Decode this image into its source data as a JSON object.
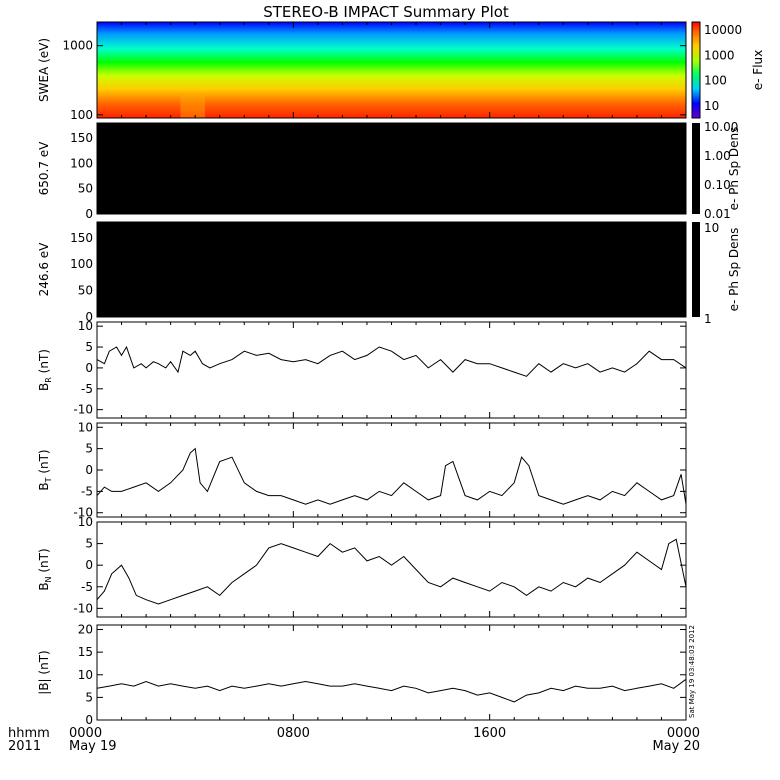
{
  "title": "STEREO-B IMPACT Summary Plot",
  "timestamp": "Sat May 19 03:48:03 2012",
  "time_axis": {
    "corner_labels": [
      "hhmm",
      "2011"
    ],
    "ticks": [
      {
        "label": "0000",
        "sub": "May 19",
        "hour": 0
      },
      {
        "label": "0800",
        "sub": "",
        "hour": 8
      },
      {
        "label": "1600",
        "sub": "",
        "hour": 16
      },
      {
        "label": "0000",
        "sub": "May 20",
        "hour": 24
      }
    ],
    "range_hours": [
      0,
      24
    ]
  },
  "colors": {
    "spectrogram": [
      "#0000ff",
      "#0099ff",
      "#00ffcc",
      "#00ff00",
      "#ccff00",
      "#ffcc00",
      "#ff6600",
      "#ff2200"
    ],
    "dark_panel": "#000000",
    "line": "#000000"
  },
  "chart_data": [
    {
      "type": "heatmap",
      "ylabel": "SWEA (eV)",
      "yscale": "log",
      "ylim": [
        90,
        2200
      ],
      "yticks": [
        "100",
        "1000"
      ],
      "colorbar": {
        "label": "e- Flux",
        "ticks": [
          "10000",
          "1000",
          "100",
          "10"
        ]
      }
    },
    {
      "type": "heatmap",
      "ylabel": "650.7 eV",
      "ylim": [
        0,
        180
      ],
      "yticks": [
        "0",
        "50",
        "100",
        "150"
      ],
      "colorbar": {
        "label": "e- Ph Sp Dens",
        "ticks": [
          "10.00",
          "1.00",
          "0.10",
          "0.01"
        ]
      }
    },
    {
      "type": "heatmap",
      "ylabel": "246.6 eV",
      "ylim": [
        0,
        180
      ],
      "yticks": [
        "0",
        "50",
        "100",
        "150"
      ],
      "colorbar": {
        "label": "e- Ph Sp Dens",
        "ticks": [
          "10",
          "1"
        ]
      }
    },
    {
      "type": "line",
      "ylabel": "B",
      "ylabel_sub": "R",
      "ylabel_unit": "(nT)",
      "ylim": [
        -12,
        11
      ],
      "yticks": [
        "-10",
        "-5",
        "0",
        "5",
        "10"
      ],
      "x": [
        0,
        0.3,
        0.5,
        0.8,
        1.0,
        1.2,
        1.5,
        1.8,
        2.0,
        2.3,
        2.5,
        2.8,
        3.0,
        3.3,
        3.5,
        3.8,
        4.0,
        4.3,
        4.6,
        5.0,
        5.5,
        6.0,
        6.5,
        7.0,
        7.5,
        8.0,
        8.5,
        9.0,
        9.5,
        10.0,
        10.5,
        11.0,
        11.5,
        12.0,
        12.5,
        13.0,
        13.5,
        14.0,
        14.5,
        15.0,
        15.5,
        16.0,
        16.5,
        17.0,
        17.5,
        18.0,
        18.5,
        19.0,
        19.5,
        20.0,
        20.5,
        21.0,
        21.5,
        22.0,
        22.5,
        23.0,
        23.5,
        24.0
      ],
      "values": [
        2,
        1,
        4,
        5,
        3,
        5,
        0,
        1,
        0,
        1.5,
        1,
        0,
        1.5,
        -1,
        4,
        3,
        4,
        1,
        0,
        1,
        2,
        4,
        3,
        3.5,
        2,
        1.5,
        2,
        1,
        3,
        4,
        2,
        3,
        5,
        4,
        2,
        3,
        0,
        2,
        -1,
        2,
        1,
        1,
        0,
        -1,
        -2,
        1,
        -1,
        1,
        0,
        1,
        -1,
        0,
        -1,
        1,
        4,
        2,
        2,
        0
      ]
    },
    {
      "type": "line",
      "ylabel": "B",
      "ylabel_sub": "T",
      "ylabel_unit": "(nT)",
      "ylim": [
        -11,
        11
      ],
      "yticks": [
        "-10",
        "-5",
        "0",
        "5",
        "10"
      ],
      "x": [
        0,
        0.3,
        0.6,
        1.0,
        1.5,
        2.0,
        2.5,
        3.0,
        3.5,
        3.8,
        4.0,
        4.2,
        4.5,
        5.0,
        5.5,
        6.0,
        6.5,
        7.0,
        7.5,
        8.0,
        8.5,
        9.0,
        9.5,
        10.0,
        10.5,
        11.0,
        11.5,
        12.0,
        12.5,
        13.0,
        13.5,
        14.0,
        14.2,
        14.5,
        15.0,
        15.5,
        16.0,
        16.5,
        17.0,
        17.3,
        17.6,
        18.0,
        18.5,
        19.0,
        19.5,
        20.0,
        20.5,
        21.0,
        21.5,
        22.0,
        22.5,
        23.0,
        23.5,
        23.8,
        24.0
      ],
      "values": [
        -6,
        -4,
        -5,
        -5,
        -4,
        -3,
        -5,
        -3,
        0,
        4,
        5,
        -3,
        -5,
        2,
        3,
        -3,
        -5,
        -6,
        -6,
        -7,
        -8,
        -7,
        -8,
        -7,
        -6,
        -7,
        -5,
        -6,
        -3,
        -5,
        -7,
        -6,
        1,
        2,
        -6,
        -7,
        -5,
        -6,
        -3,
        3,
        1,
        -6,
        -7,
        -8,
        -7,
        -6,
        -7,
        -5,
        -6,
        -3,
        -5,
        -7,
        -6,
        -1,
        -8
      ]
    },
    {
      "type": "line",
      "ylabel": "B",
      "ylabel_sub": "N",
      "ylabel_unit": "(nT)",
      "ylim": [
        -12,
        10
      ],
      "yticks": [
        "-10",
        "-5",
        "0",
        "5",
        "10"
      ],
      "x": [
        0,
        0.3,
        0.6,
        1.0,
        1.3,
        1.6,
        2.0,
        2.5,
        3.0,
        3.5,
        4.0,
        4.5,
        5.0,
        5.5,
        6.0,
        6.5,
        7.0,
        7.5,
        8.0,
        8.5,
        9.0,
        9.5,
        10.0,
        10.5,
        11.0,
        11.5,
        12.0,
        12.5,
        13.0,
        13.5,
        14.0,
        14.5,
        15.0,
        15.5,
        16.0,
        16.5,
        17.0,
        17.5,
        18.0,
        18.5,
        19.0,
        19.5,
        20.0,
        20.5,
        21.0,
        21.5,
        22.0,
        22.5,
        23.0,
        23.3,
        23.6,
        24.0
      ],
      "values": [
        -8,
        -6,
        -2,
        0,
        -3,
        -7,
        -8,
        -9,
        -8,
        -7,
        -6,
        -5,
        -7,
        -4,
        -2,
        0,
        4,
        5,
        4,
        3,
        2,
        5,
        3,
        4,
        1,
        2,
        0,
        2,
        -1,
        -4,
        -5,
        -3,
        -4,
        -5,
        -6,
        -4,
        -5,
        -7,
        -5,
        -6,
        -4,
        -5,
        -3,
        -4,
        -2,
        0,
        3,
        1,
        -1,
        5,
        6,
        -5
      ]
    },
    {
      "type": "line",
      "ylabel": "|B| (nT)",
      "ylim": [
        0,
        21
      ],
      "yticks": [
        "0",
        "5",
        "10",
        "15",
        "20"
      ],
      "x": [
        0,
        0.5,
        1.0,
        1.5,
        2.0,
        2.5,
        3.0,
        3.5,
        4.0,
        4.5,
        5.0,
        5.5,
        6.0,
        6.5,
        7.0,
        7.5,
        8.0,
        8.5,
        9.0,
        9.5,
        10.0,
        10.5,
        11.0,
        11.5,
        12.0,
        12.5,
        13.0,
        13.5,
        14.0,
        14.5,
        15.0,
        15.5,
        16.0,
        16.5,
        17.0,
        17.5,
        18.0,
        18.5,
        19.0,
        19.5,
        20.0,
        20.5,
        21.0,
        21.5,
        22.0,
        22.5,
        23.0,
        23.5,
        24.0
      ],
      "values": [
        7,
        7.5,
        8,
        7.5,
        8.5,
        7.5,
        8,
        7.5,
        7,
        7.5,
        6.5,
        7.5,
        7,
        7.5,
        8,
        7.5,
        8,
        8.5,
        8,
        7.5,
        7.5,
        8,
        7.5,
        7,
        6.5,
        7.5,
        7,
        6,
        6.5,
        7,
        6.5,
        5.5,
        6,
        5,
        4,
        5.5,
        6,
        7,
        6.5,
        7.5,
        7,
        7,
        7.5,
        6.5,
        7,
        7.5,
        8,
        7,
        9
      ]
    }
  ]
}
